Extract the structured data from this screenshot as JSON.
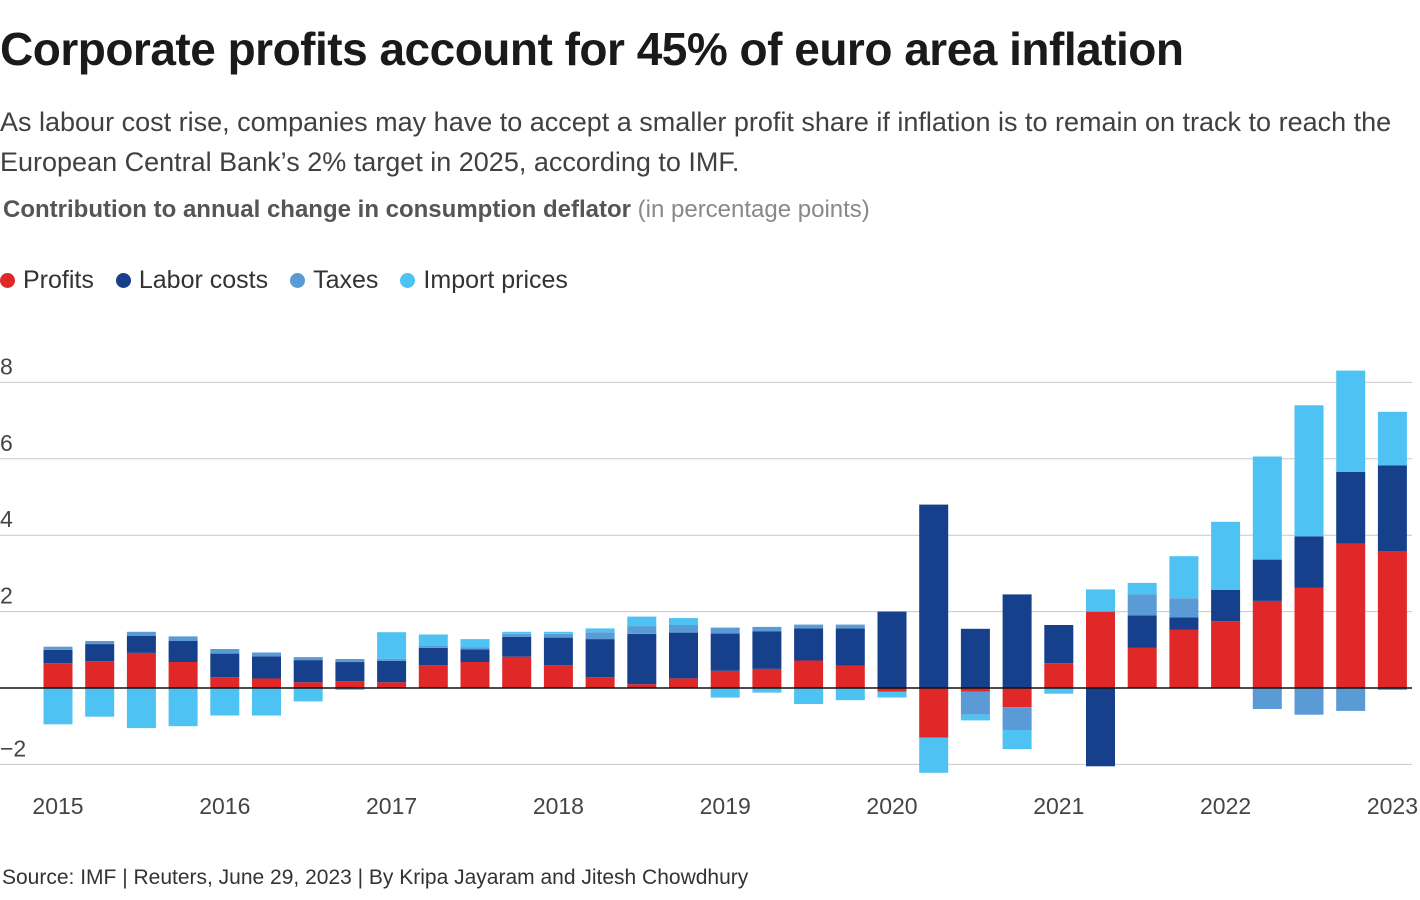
{
  "header": {
    "title": "Corporate profits account for 45% of euro area inflation",
    "subtitle": "As labour cost rise, companies may have to accept a smaller profit share if inflation is to remain on track to reach the European Central Bank’s 2% target in 2025, according to IMF.",
    "chart_heading_bold": "Contribution to annual change in consumption deflator",
    "chart_heading_unit": "(in percentage points)"
  },
  "legend": [
    {
      "label": "Profits",
      "color": "#e12828"
    },
    {
      "label": "Labor costs",
      "color": "#163f8c"
    },
    {
      "label": "Taxes",
      "color": "#5b9bd5"
    },
    {
      "label": "Import prices",
      "color": "#4ec3f3"
    }
  ],
  "footer": {
    "source": "Source: IMF | Reuters, June 29, 2023 | By Kripa Jayaram and Jitesh Chowdhury"
  },
  "chart_data": {
    "type": "bar",
    "stacked": true,
    "ylim": [
      -2.3,
      8.4
    ],
    "yticks": [
      -2,
      2,
      4,
      6,
      8
    ],
    "ytick_labels": [
      "−2",
      "2",
      "4",
      "6",
      "8"
    ],
    "grid": true,
    "legend_position": "top-left",
    "x_tick_labels": [
      "2015",
      "2016",
      "2017",
      "2018",
      "2019",
      "2020",
      "2021",
      "2022",
      "2023"
    ],
    "x_tick_index": [
      0,
      4,
      8,
      12,
      16,
      20,
      24,
      28,
      32
    ],
    "categories": [
      "2015Q1",
      "2015Q2",
      "2015Q3",
      "2015Q4",
      "2016Q1",
      "2016Q2",
      "2016Q3",
      "2016Q4",
      "2017Q1",
      "2017Q2",
      "2017Q3",
      "2017Q4",
      "2018Q1",
      "2018Q2",
      "2018Q3",
      "2018Q4",
      "2019Q1",
      "2019Q2",
      "2019Q3",
      "2019Q4",
      "2020Q1",
      "2020Q2",
      "2020Q3",
      "2020Q4",
      "2021Q1",
      "2021Q2",
      "2021Q3",
      "2021Q4",
      "2022Q1",
      "2022Q2",
      "2022Q3",
      "2022Q4",
      "2023Q1"
    ],
    "series": [
      {
        "name": "Profits",
        "color": "#e12828",
        "values": [
          0.65,
          0.7,
          0.92,
          0.68,
          0.28,
          0.25,
          0.15,
          0.18,
          0.15,
          0.6,
          0.68,
          0.82,
          0.6,
          0.28,
          0.1,
          0.25,
          0.45,
          0.5,
          0.72,
          0.58,
          -0.1,
          -1.3,
          -0.1,
          -0.5,
          0.65,
          2.0,
          1.05,
          1.52,
          1.75,
          2.28,
          2.62,
          3.78,
          3.58
        ]
      },
      {
        "name": "Labor costs",
        "color": "#163f8c",
        "values": [
          0.35,
          0.45,
          0.45,
          0.55,
          0.62,
          0.58,
          0.58,
          0.5,
          0.56,
          0.45,
          0.33,
          0.52,
          0.72,
          1.0,
          1.32,
          1.2,
          0.98,
          0.98,
          0.84,
          0.98,
          2.0,
          4.8,
          1.55,
          2.45,
          1.0,
          -2.05,
          0.85,
          0.33,
          0.82,
          1.08,
          1.35,
          1.88,
          2.25
        ]
      },
      {
        "name": "Taxes",
        "color": "#5b9bd5",
        "values": [
          0.08,
          0.08,
          0.1,
          0.12,
          0.12,
          0.1,
          0.08,
          0.08,
          0.05,
          0.05,
          0.05,
          0.08,
          0.1,
          0.18,
          0.2,
          0.2,
          0.15,
          0.12,
          0.1,
          0.1,
          0.0,
          0.0,
          -0.6,
          -0.6,
          0.0,
          0.0,
          0.55,
          0.5,
          0.0,
          -0.55,
          -0.7,
          -0.6,
          -0.05
        ]
      },
      {
        "name": "Import prices",
        "color": "#4ec3f3",
        "values": [
          -0.95,
          -0.75,
          -1.05,
          -1.0,
          -0.72,
          -0.72,
          -0.35,
          -0.05,
          0.7,
          0.3,
          0.22,
          0.05,
          0.05,
          0.1,
          0.25,
          0.18,
          -0.25,
          -0.12,
          -0.42,
          -0.32,
          -0.15,
          -0.92,
          -0.15,
          -0.5,
          -0.15,
          0.58,
          0.3,
          1.1,
          1.78,
          2.7,
          3.43,
          2.65,
          1.4
        ]
      }
    ]
  }
}
